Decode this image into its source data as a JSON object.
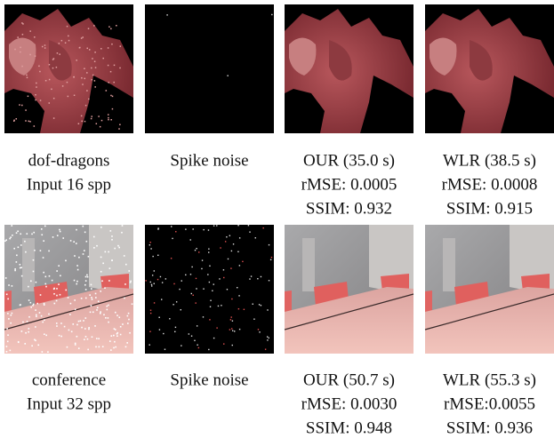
{
  "rows": [
    {
      "captions": [
        [
          "dof-dragons",
          "Input 16 spp"
        ],
        [
          "Spike noise"
        ],
        [
          "OUR (35.0 s)",
          "rMSE: 0.0005",
          "SSIM: 0.932"
        ],
        [
          "WLR (38.5 s)",
          "rMSE: 0.0008",
          "SSIM: 0.915"
        ]
      ]
    },
    {
      "captions": [
        [
          "conference",
          "Input 32 spp"
        ],
        [
          "Spike noise"
        ],
        [
          "OUR (50.7 s)",
          "rMSE: 0.0030",
          "SSIM: 0.948"
        ],
        [
          "WLR (55.3 s)",
          "rMSE:0.0055",
          "SSIM: 0.936"
        ]
      ]
    }
  ]
}
